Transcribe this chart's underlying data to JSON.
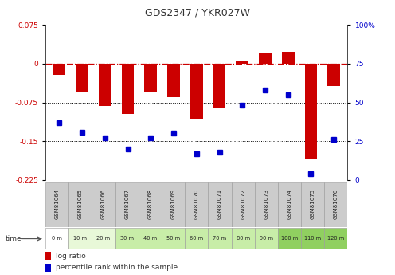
{
  "title": "GDS2347 / YKR027W",
  "samples": [
    "GSM81064",
    "GSM81065",
    "GSM81066",
    "GSM81067",
    "GSM81068",
    "GSM81069",
    "GSM81070",
    "GSM81071",
    "GSM81072",
    "GSM81073",
    "GSM81074",
    "GSM81075",
    "GSM81076"
  ],
  "time_labels": [
    "0 m",
    "10 m",
    "20 m",
    "30 m",
    "40 m",
    "50 m",
    "60 m",
    "70 m",
    "80 m",
    "90 m",
    "100 m",
    "110 m",
    "120 m"
  ],
  "log_ratio": [
    -0.022,
    -0.055,
    -0.082,
    -0.098,
    -0.055,
    -0.065,
    -0.107,
    -0.085,
    0.005,
    0.02,
    0.022,
    -0.185,
    -0.043
  ],
  "percentile": [
    37,
    31,
    27,
    20,
    27,
    30,
    17,
    18,
    48,
    58,
    55,
    4,
    26
  ],
  "ylim_left": [
    -0.225,
    0.075
  ],
  "ylim_right": [
    0,
    100
  ],
  "yticks_left": [
    0.075,
    0,
    -0.075,
    -0.15,
    -0.225
  ],
  "yticks_right": [
    100,
    75,
    50,
    25,
    0
  ],
  "bar_color": "#cc0000",
  "dot_color": "#0000cc",
  "zero_line_color": "#cc0000",
  "grid_color": "#000000",
  "bar_width": 0.55,
  "time_row_colors": [
    "#ffffff",
    "#e8f8d8",
    "#e8f8d8",
    "#c8eda8",
    "#c8eda8",
    "#c8eda8",
    "#c8eda8",
    "#c8eda8",
    "#c8eda8",
    "#c8eda8",
    "#90d060",
    "#90d060",
    "#90d060"
  ],
  "sample_row_color": "#cccccc",
  "title_color": "#333333",
  "left_axis_color": "#cc0000",
  "right_axis_color": "#0000cc"
}
